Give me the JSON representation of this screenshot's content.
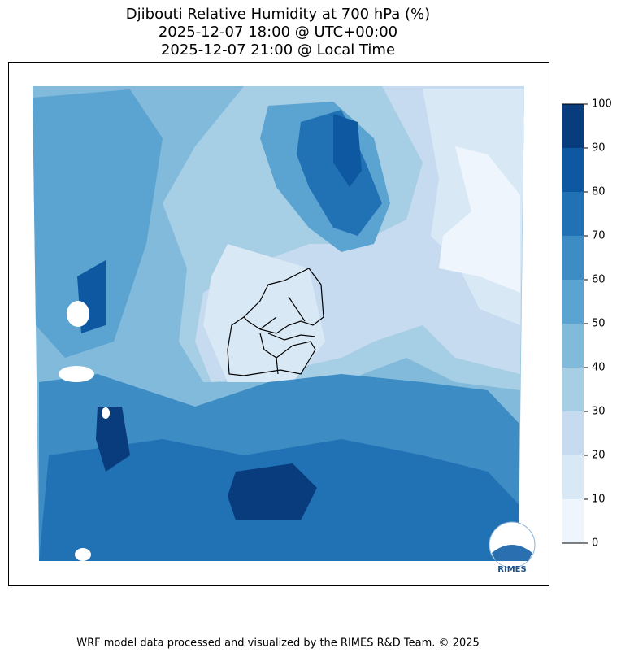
{
  "title": [
    "Djibouti Relative Humidity at 700 hPa (%)",
    "2025-12-07 18:00 @ UTC+00:00",
    "2025-12-07 21:00 @ Local Time"
  ],
  "colorbar": {
    "ticks": [
      0,
      10,
      20,
      30,
      40,
      50,
      60,
      70,
      80,
      90,
      100
    ],
    "colors": [
      "#eef5fc",
      "#d9e8f5",
      "#c6dbef",
      "#a6cee4",
      "#82badb",
      "#5ba3d0",
      "#3d8dc4",
      "#2171b5",
      "#0d58a1",
      "#083c7d"
    ]
  },
  "logo": "RIMES",
  "footer": "WRF model data processed and visualized by the RIMES R&D Team. © 2025"
}
